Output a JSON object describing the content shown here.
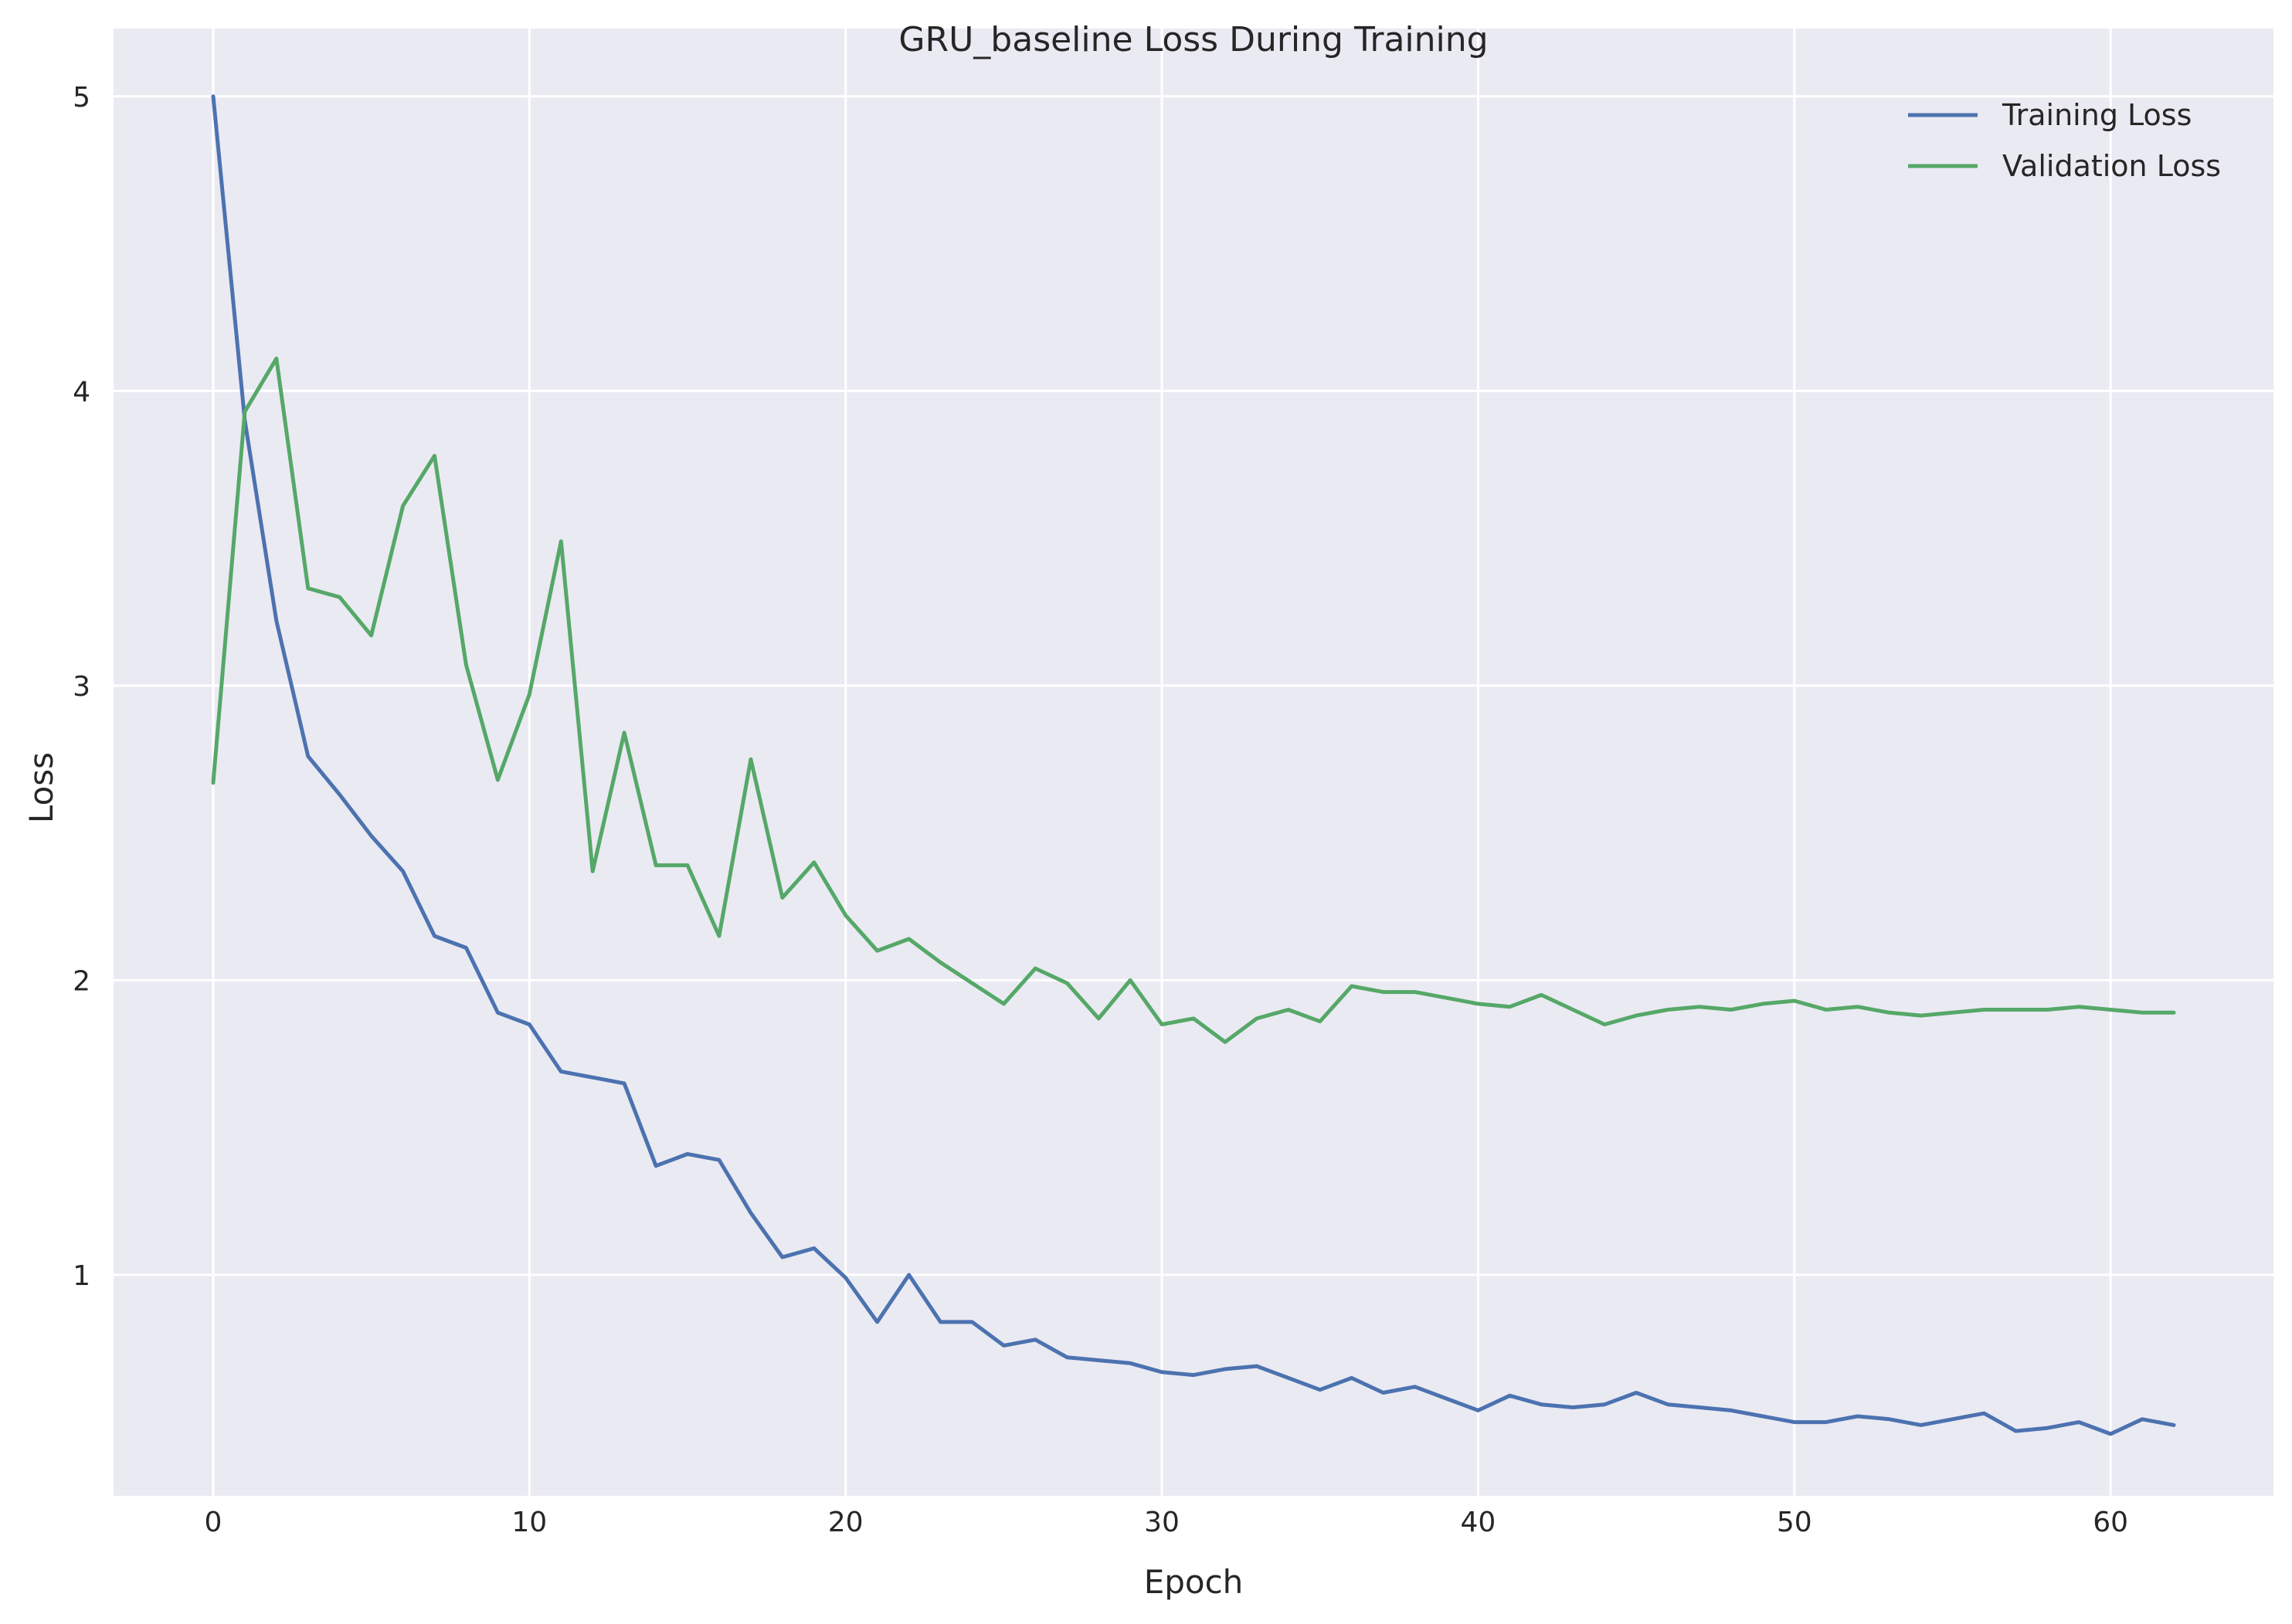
{
  "chart_data": {
    "type": "line",
    "title": "GRU_baseline Loss During Training",
    "xlabel": "Epoch",
    "ylabel": "Loss",
    "xlim": [
      -3.15,
      65.15
    ],
    "ylim": [
      0.25,
      5.23
    ],
    "xticks": [
      0,
      10,
      20,
      30,
      40,
      50,
      60
    ],
    "yticks": [
      1,
      2,
      3,
      4,
      5
    ],
    "grid": true,
    "legend": "top-right",
    "x": [
      0,
      1,
      2,
      3,
      4,
      5,
      6,
      7,
      8,
      9,
      10,
      11,
      12,
      13,
      14,
      15,
      16,
      17,
      18,
      19,
      20,
      21,
      22,
      23,
      24,
      25,
      26,
      27,
      28,
      29,
      30,
      31,
      32,
      33,
      34,
      35,
      36,
      37,
      38,
      39,
      40,
      41,
      42,
      43,
      44,
      45,
      46,
      47,
      48,
      49,
      50,
      51,
      52,
      53,
      54,
      55,
      56,
      57,
      58,
      59,
      60,
      61,
      62
    ],
    "series": [
      {
        "name": "Training Loss",
        "color": "#4c72b0",
        "values": [
          5.0,
          3.9,
          3.22,
          2.76,
          2.63,
          2.49,
          2.37,
          2.15,
          2.11,
          1.89,
          1.85,
          1.69,
          1.67,
          1.65,
          1.37,
          1.41,
          1.39,
          1.21,
          1.06,
          1.09,
          0.99,
          0.84,
          1.0,
          0.84,
          0.84,
          0.76,
          0.78,
          0.72,
          0.71,
          0.7,
          0.67,
          0.66,
          0.68,
          0.69,
          0.65,
          0.61,
          0.65,
          0.6,
          0.62,
          0.58,
          0.54,
          0.59,
          0.56,
          0.55,
          0.56,
          0.6,
          0.56,
          0.55,
          0.54,
          0.52,
          0.5,
          0.5,
          0.52,
          0.51,
          0.49,
          0.51,
          0.53,
          0.47,
          0.48,
          0.5,
          0.46,
          0.51,
          0.49
        ]
      },
      {
        "name": "Validation Loss",
        "color": "#55a868",
        "values": [
          2.67,
          3.93,
          4.11,
          3.33,
          3.3,
          3.17,
          3.61,
          3.78,
          3.07,
          2.68,
          2.97,
          3.49,
          2.37,
          2.84,
          2.39,
          2.39,
          2.15,
          2.75,
          2.28,
          2.4,
          2.22,
          2.1,
          2.14,
          2.06,
          1.99,
          1.92,
          2.04,
          1.99,
          1.87,
          2.0,
          1.85,
          1.87,
          1.79,
          1.87,
          1.9,
          1.86,
          1.98,
          1.96,
          1.96,
          1.94,
          1.92,
          1.91,
          1.95,
          1.9,
          1.85,
          1.88,
          1.9,
          1.91,
          1.9,
          1.92,
          1.93,
          1.9,
          1.91,
          1.89,
          1.88,
          1.89,
          1.9,
          1.9,
          1.9,
          1.91,
          1.9,
          1.89,
          1.89
        ]
      }
    ]
  }
}
